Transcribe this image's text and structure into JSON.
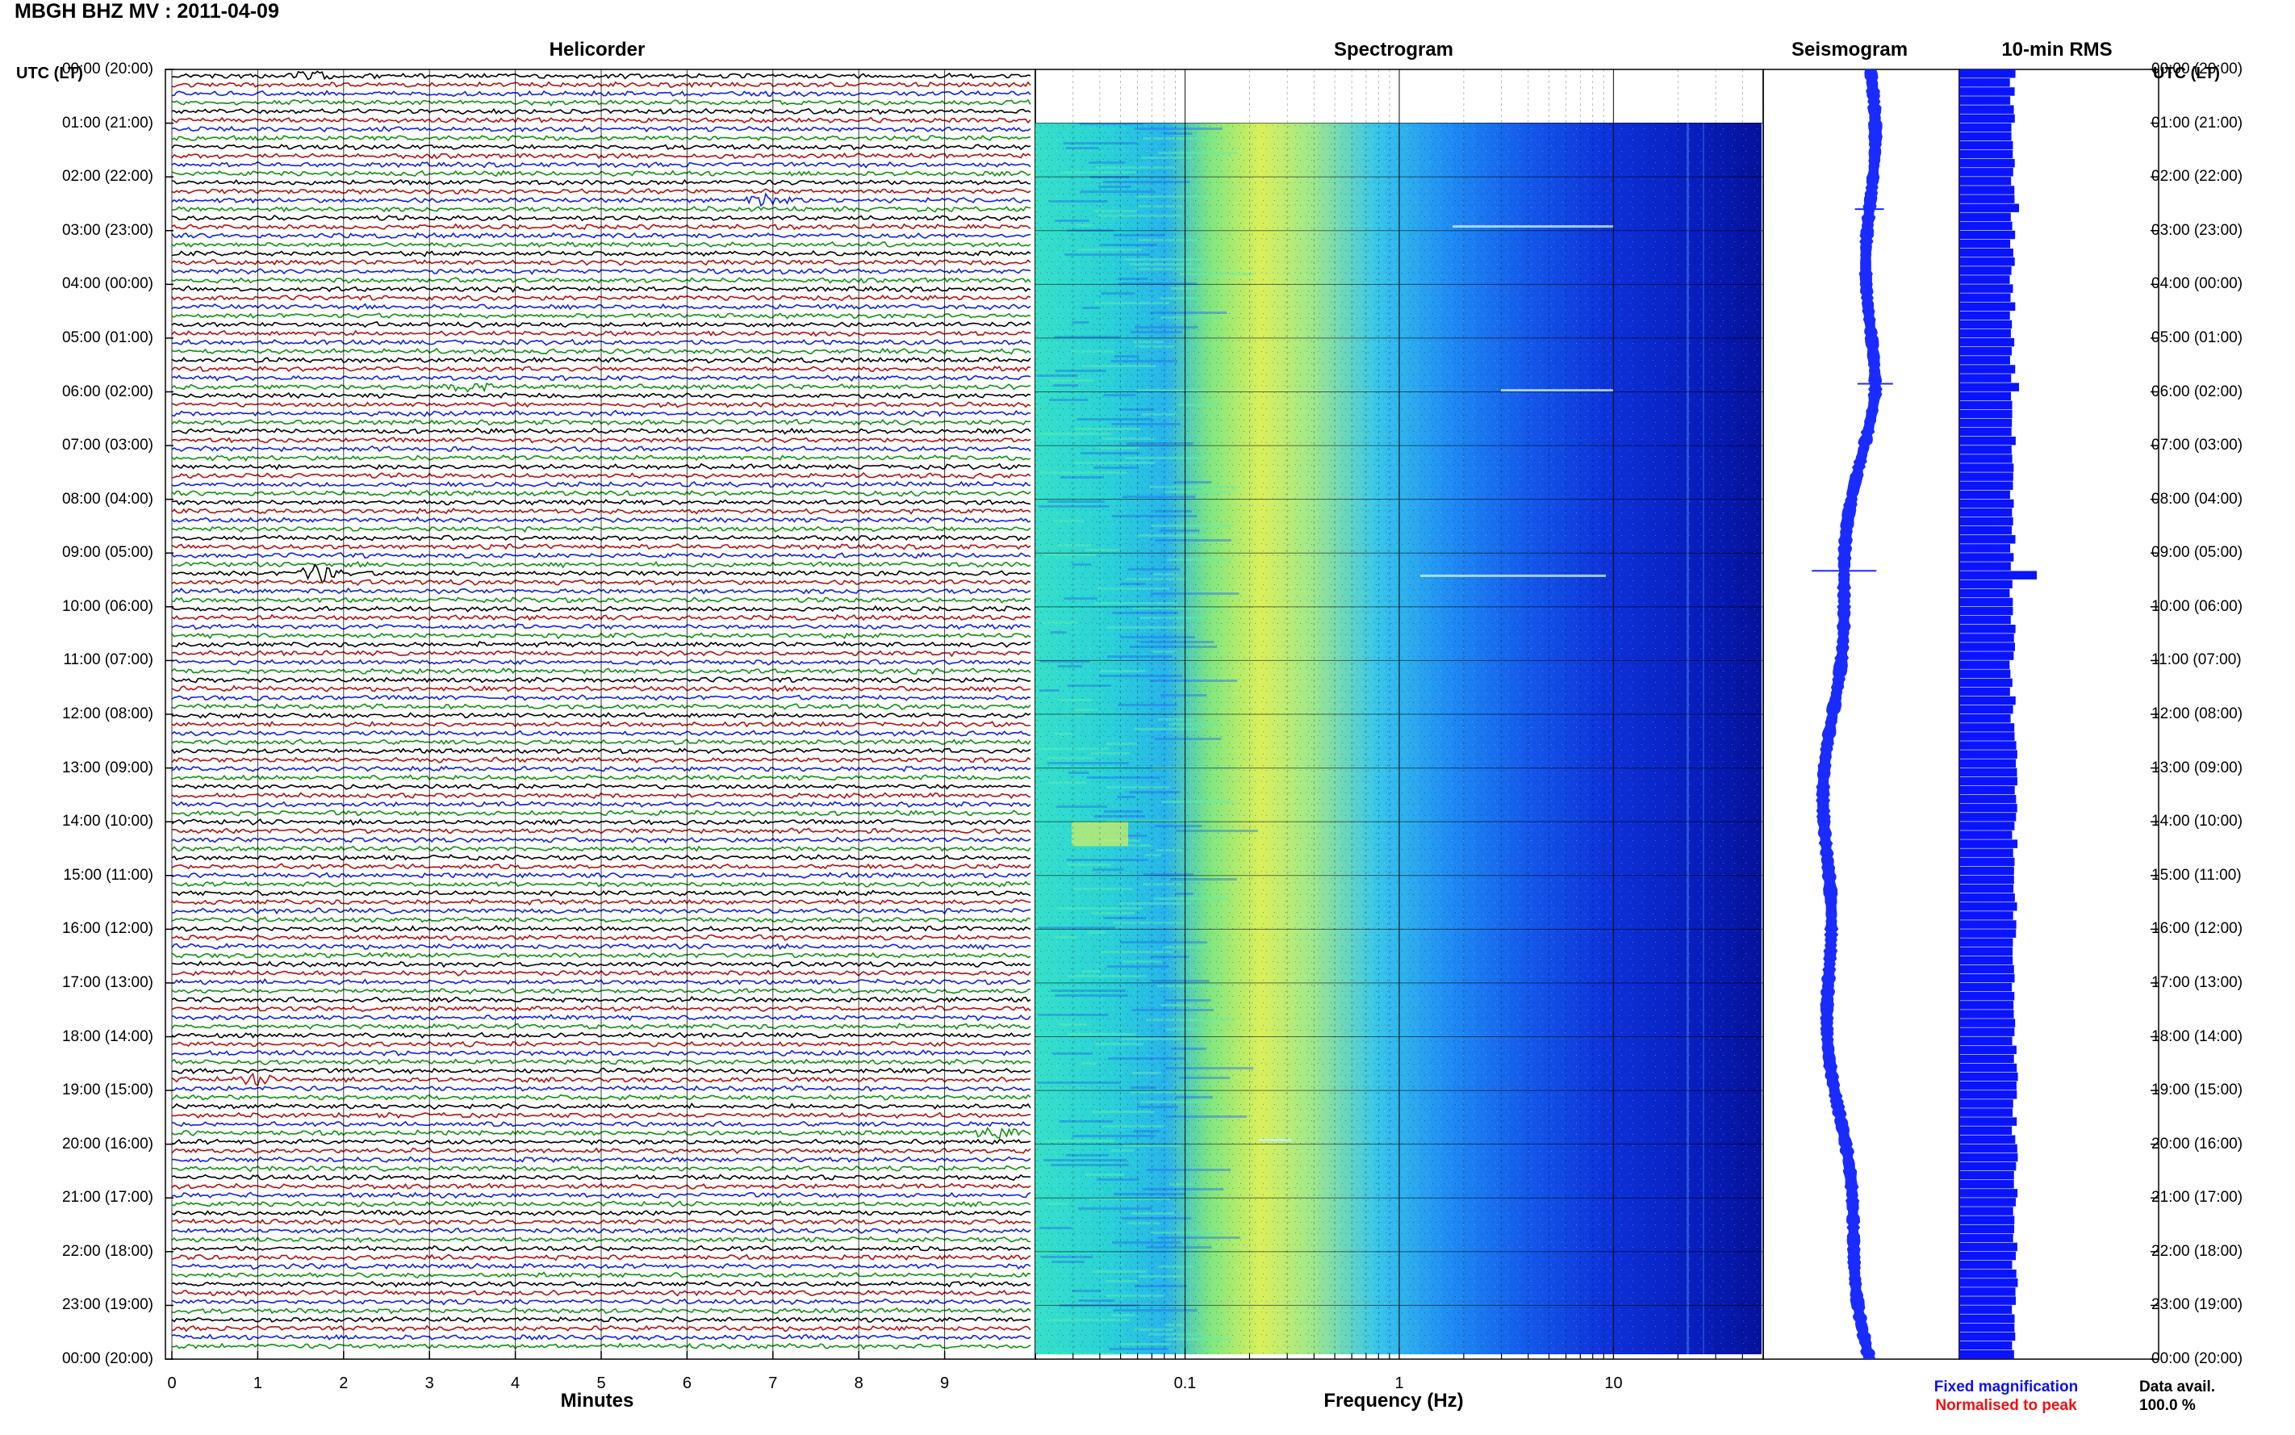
{
  "header": {
    "station": "MBGH BHZ MV : 2011-04-09"
  },
  "panels": {
    "helicorder_title": "Helicorder",
    "spectrogram_title": "Spectrogram",
    "seismogram_title": "Seismogram",
    "rms_title": "10-min RMS"
  },
  "axes": {
    "left_label": "UTC (LT)",
    "right_label": "UTC (LT)",
    "helicorder_xlabel": "Minutes",
    "spectrogram_xlabel": "Frequency (Hz)"
  },
  "legend": {
    "fixed": "Fixed magnification",
    "normalised": "Normalised to peak",
    "availability_label": "Data avail.",
    "availability_value": "100.0 %"
  },
  "colors": {
    "trace_cycle": [
      "#000000",
      "#b01010",
      "#1020e0",
      "#109010"
    ],
    "seismogram": "#1a2bff",
    "rms": "#0a14ff",
    "axis": "#000000"
  },
  "chart_data": {
    "type": "helicorder",
    "time_labels": [
      "00:00 (20:00)",
      "01:00 (21:00)",
      "02:00 (22:00)",
      "03:00 (23:00)",
      "04:00 (00:00)",
      "05:00 (01:00)",
      "06:00 (02:00)",
      "07:00 (03:00)",
      "08:00 (04:00)",
      "09:00 (05:00)",
      "10:00 (06:00)",
      "11:00 (07:00)",
      "12:00 (08:00)",
      "13:00 (09:00)",
      "14:00 (10:00)",
      "15:00 (11:00)",
      "16:00 (12:00)",
      "17:00 (13:00)",
      "18:00 (14:00)",
      "19:00 (15:00)",
      "20:00 (16:00)",
      "21:00 (17:00)",
      "22:00 (18:00)",
      "23:00 (19:00)",
      "00:00 (20:00)"
    ],
    "helicorder": {
      "x_ticks": [
        "0",
        "1",
        "2",
        "3",
        "4",
        "5",
        "6",
        "7",
        "8",
        "9"
      ],
      "xlim": [
        0,
        10
      ],
      "traces_per_hour": 6,
      "events": [
        {
          "hour": 0.0,
          "minute": 1.6,
          "amp": 1.5
        },
        {
          "hour": 2.4,
          "minute": 6.9,
          "amp": 2.2
        },
        {
          "hour": 5.8,
          "minute": 3.4,
          "amp": 2.2
        },
        {
          "hour": 9.3,
          "minute": 1.7,
          "amp": 3.5
        },
        {
          "hour": 18.8,
          "minute": 1.0,
          "amp": 1.5
        },
        {
          "hour": 19.8,
          "minute": 9.6,
          "amp": 2.4
        }
      ]
    },
    "spectrogram": {
      "x_ticks": [
        "0.1",
        "1",
        "10"
      ],
      "xlim": [
        0.02,
        50
      ],
      "scale": "log"
    },
    "seismogram": {
      "shape": "slow drift, wide around 13:00-20:00"
    },
    "rms": {
      "spike_hour": 9.3
    }
  }
}
